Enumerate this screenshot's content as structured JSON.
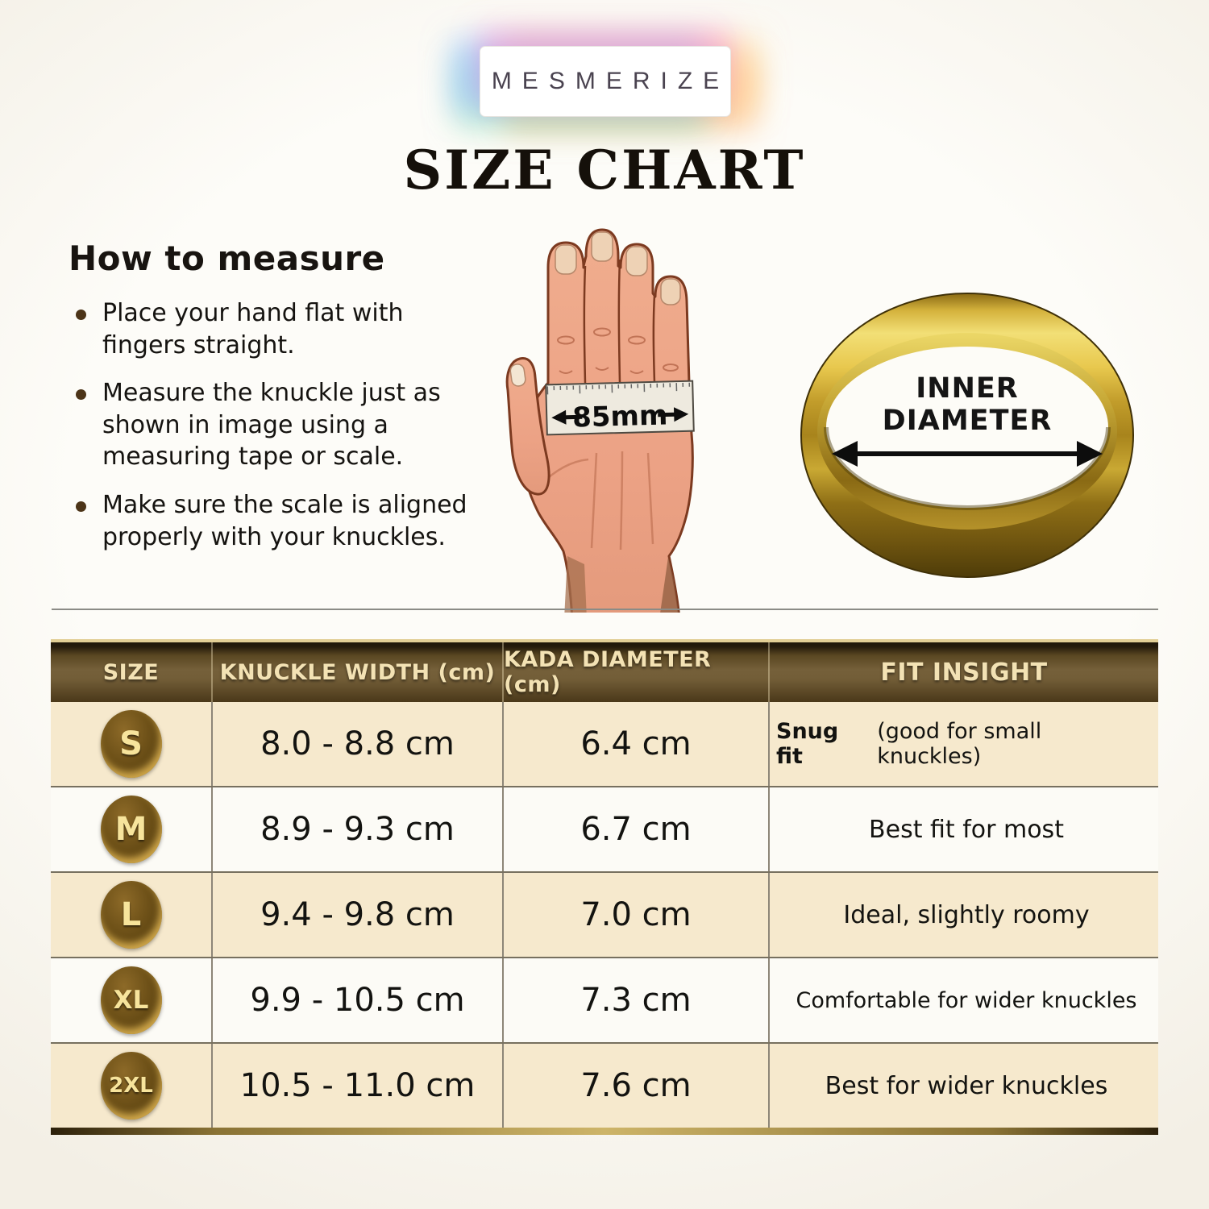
{
  "brand": {
    "name": "MESMERIZE"
  },
  "title": "SIZE CHART",
  "how_to_measure": {
    "heading": "How to measure",
    "bullets": [
      "Place your hand flat with fingers straight.",
      "Measure the knuckle just as shown in image using a measuring tape or scale.",
      "Make sure the scale is aligned properly with your knuckles."
    ]
  },
  "hand": {
    "measurement_label": "85mm"
  },
  "ring": {
    "label_line1": "INNER",
    "label_line2": "DIAMETER"
  },
  "table": {
    "headers": [
      "SIZE",
      "KNUCKLE WIDTH (cm)",
      "KADA DIAMETER (cm)",
      "FIT INSIGHT"
    ],
    "rows": [
      {
        "size": "S",
        "knuckle_width": "8.0 - 8.8 cm",
        "kada_diameter": "6.4 cm",
        "fit_bold": "Snug fit",
        "fit_rest": "(good for small knuckles)"
      },
      {
        "size": "M",
        "knuckle_width": "8.9 - 9.3 cm",
        "kada_diameter": "6.7 cm",
        "fit_bold": "",
        "fit_rest": "Best fit for most"
      },
      {
        "size": "L",
        "knuckle_width": "9.4 - 9.8 cm",
        "kada_diameter": "7.0 cm",
        "fit_bold": "",
        "fit_rest": "Ideal, slightly roomy"
      },
      {
        "size": "XL",
        "knuckle_width": "9.9 - 10.5 cm",
        "kada_diameter": "7.3 cm",
        "fit_bold": "",
        "fit_rest": "Comfortable for wider knuckles"
      },
      {
        "size": "2XL",
        "knuckle_width": "10.5 - 11.0 cm",
        "kada_diameter": "7.6 cm",
        "fit_bold": "",
        "fit_rest": "Best for wider knuckles"
      }
    ]
  },
  "colors": {
    "header_brown": "#6e5a35",
    "row_cream": "#f6e9cd",
    "row_white": "#fcfbf6",
    "badge_brown": "#5e4714",
    "badge_letter": "#f7e49c",
    "gold": "#cdb468",
    "skin": "#eca285"
  }
}
